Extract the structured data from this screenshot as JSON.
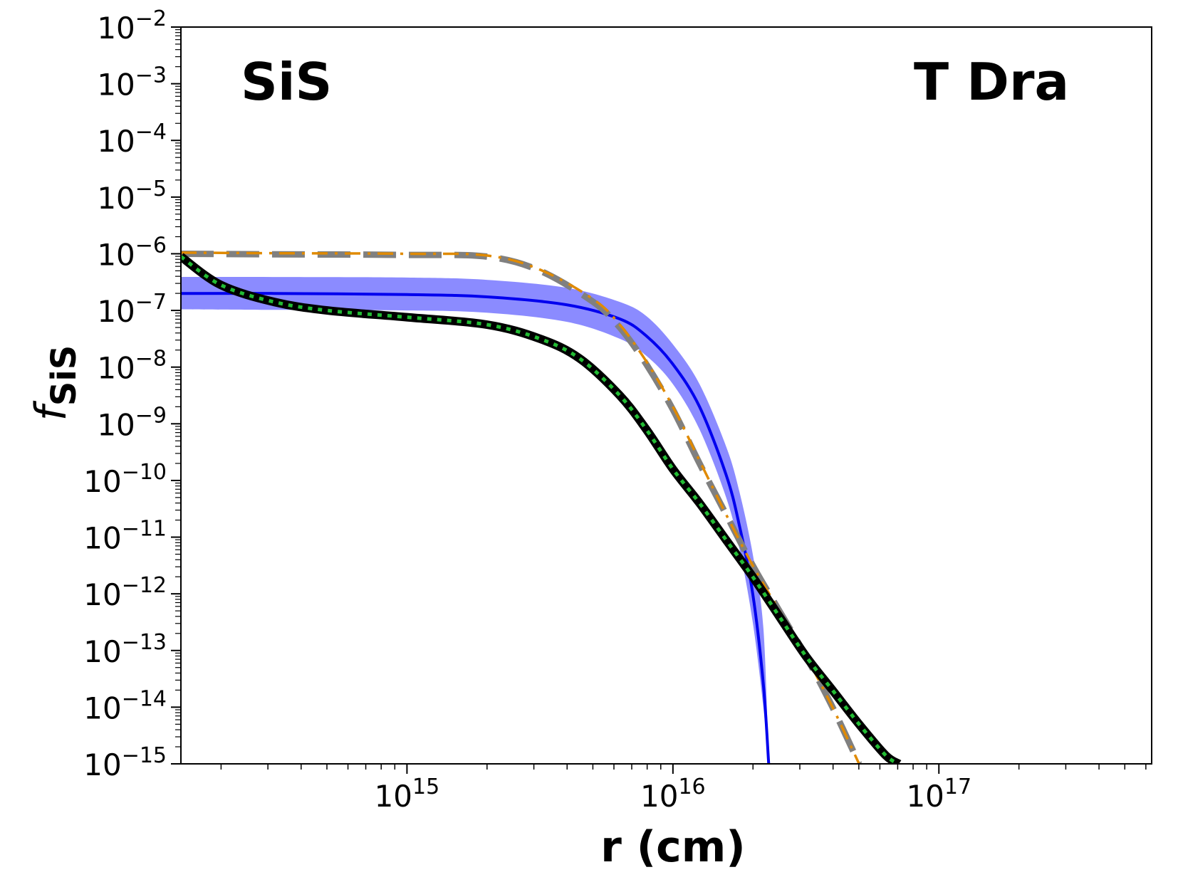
{
  "chart_data": {
    "type": "line",
    "title": "",
    "xlabel": "r (cm)",
    "ylabel": {
      "main": "f",
      "sub": "SiS"
    },
    "xscale": "log",
    "yscale": "log",
    "xlim_exp": [
      14.15,
      17.8
    ],
    "ylim_exp": [
      -15,
      -2
    ],
    "x_tick_labels": [
      {
        "base": "10",
        "exp": "15",
        "value_exp": 15
      },
      {
        "base": "10",
        "exp": "16",
        "value_exp": 16
      },
      {
        "base": "10",
        "exp": "17",
        "value_exp": 17
      }
    ],
    "y_tick_labels": [
      {
        "base": "10",
        "exp": "−2",
        "value_exp": -2
      },
      {
        "base": "10",
        "exp": "−3",
        "value_exp": -3
      },
      {
        "base": "10",
        "exp": "−4",
        "value_exp": -4
      },
      {
        "base": "10",
        "exp": "−5",
        "value_exp": -5
      },
      {
        "base": "10",
        "exp": "−6",
        "value_exp": -6
      },
      {
        "base": "10",
        "exp": "−7",
        "value_exp": -7
      },
      {
        "base": "10",
        "exp": "−8",
        "value_exp": -8
      },
      {
        "base": "10",
        "exp": "−9",
        "value_exp": -9
      },
      {
        "base": "10",
        "exp": "−10",
        "value_exp": -10
      },
      {
        "base": "10",
        "exp": "−11",
        "value_exp": -11
      },
      {
        "base": "10",
        "exp": "−12",
        "value_exp": -12
      },
      {
        "base": "10",
        "exp": "−13",
        "value_exp": -13
      },
      {
        "base": "10",
        "exp": "−14",
        "value_exp": -14
      },
      {
        "base": "10",
        "exp": "−15",
        "value_exp": -15
      }
    ],
    "annotations": [
      {
        "text": "SiS",
        "position": "top-left"
      },
      {
        "text": "T Dra",
        "position": "top-right"
      }
    ],
    "band": {
      "name": "blue-uncertainty-band",
      "color": "#7777ff",
      "x_log": [
        14.15,
        14.5,
        15.0,
        15.3,
        15.6,
        15.8,
        15.9,
        16.0,
        16.1,
        16.2,
        16.25,
        16.3,
        16.34,
        16.36
      ],
      "upper_log": [
        -6.41,
        -6.41,
        -6.42,
        -6.46,
        -6.6,
        -6.85,
        -7.1,
        -7.6,
        -8.3,
        -9.4,
        -10.2,
        -11.3,
        -12.6,
        -15.0
      ],
      "lower_log": [
        -6.98,
        -6.99,
        -7.0,
        -7.04,
        -7.2,
        -7.5,
        -7.8,
        -8.3,
        -9.1,
        -10.3,
        -11.2,
        -12.5,
        -14.0,
        -15.0
      ]
    },
    "series": [
      {
        "name": "blue-solid",
        "color": "#0000ee",
        "style": "solid",
        "x_log": [
          14.15,
          14.5,
          15.0,
          15.3,
          15.6,
          15.8,
          15.9,
          16.0,
          16.1,
          16.2,
          16.25,
          16.3,
          16.34,
          16.36
        ],
        "y_log": [
          -6.7,
          -6.7,
          -6.72,
          -6.76,
          -6.9,
          -7.15,
          -7.45,
          -7.95,
          -8.7,
          -9.9,
          -10.8,
          -12.0,
          -13.6,
          -15.0
        ]
      },
      {
        "name": "gray-dashed",
        "color": "#808080",
        "style": "dashed",
        "x_log": [
          14.15,
          14.5,
          15.0,
          15.3,
          15.5,
          15.7,
          15.8,
          15.9,
          16.0,
          16.1,
          16.2,
          16.3,
          16.4,
          16.5,
          16.6,
          16.7
        ],
        "y_log": [
          -6.0,
          -6.01,
          -6.02,
          -6.05,
          -6.3,
          -6.85,
          -7.3,
          -7.95,
          -8.75,
          -9.7,
          -10.6,
          -11.5,
          -12.3,
          -13.1,
          -14.0,
          -15.0
        ]
      },
      {
        "name": "orange-dashdot",
        "color": "#e08a00",
        "style": "dashdot",
        "x_log": [
          14.15,
          14.5,
          15.0,
          15.3,
          15.5,
          15.7,
          15.8,
          15.9,
          16.0,
          16.1,
          16.2,
          16.3,
          16.4,
          16.5,
          16.6,
          16.7
        ],
        "y_log": [
          -5.98,
          -5.99,
          -6.0,
          -6.03,
          -6.28,
          -6.8,
          -7.25,
          -7.9,
          -8.7,
          -9.65,
          -10.6,
          -11.5,
          -12.3,
          -13.1,
          -14.0,
          -15.0
        ]
      },
      {
        "name": "black-solid-thick",
        "color": "#000000",
        "style": "solid",
        "x_log": [
          14.15,
          14.3,
          14.5,
          14.7,
          15.0,
          15.3,
          15.5,
          15.65,
          15.8,
          15.9,
          16.0,
          16.1,
          16.2,
          16.3,
          16.4,
          16.5,
          16.6,
          16.7,
          16.8,
          16.85
        ],
        "y_log": [
          -6.05,
          -6.55,
          -6.85,
          -7.0,
          -7.12,
          -7.25,
          -7.5,
          -7.85,
          -8.5,
          -9.1,
          -9.8,
          -10.4,
          -11.05,
          -11.7,
          -12.4,
          -13.1,
          -13.7,
          -14.3,
          -14.85,
          -15.0
        ]
      },
      {
        "name": "green-dotted",
        "color": "#22bb33",
        "style": "dotted",
        "x_log": [
          14.15,
          14.3,
          14.5,
          14.7,
          15.0,
          15.3,
          15.5,
          15.65,
          15.8,
          15.9,
          16.0,
          16.1,
          16.2,
          16.3,
          16.4,
          16.5,
          16.6,
          16.7,
          16.8,
          16.85
        ],
        "y_log": [
          -6.05,
          -6.55,
          -6.85,
          -7.0,
          -7.12,
          -7.25,
          -7.5,
          -7.85,
          -8.5,
          -9.1,
          -9.8,
          -10.4,
          -11.05,
          -11.7,
          -12.4,
          -13.1,
          -13.7,
          -14.3,
          -14.85,
          -15.0
        ]
      }
    ]
  }
}
